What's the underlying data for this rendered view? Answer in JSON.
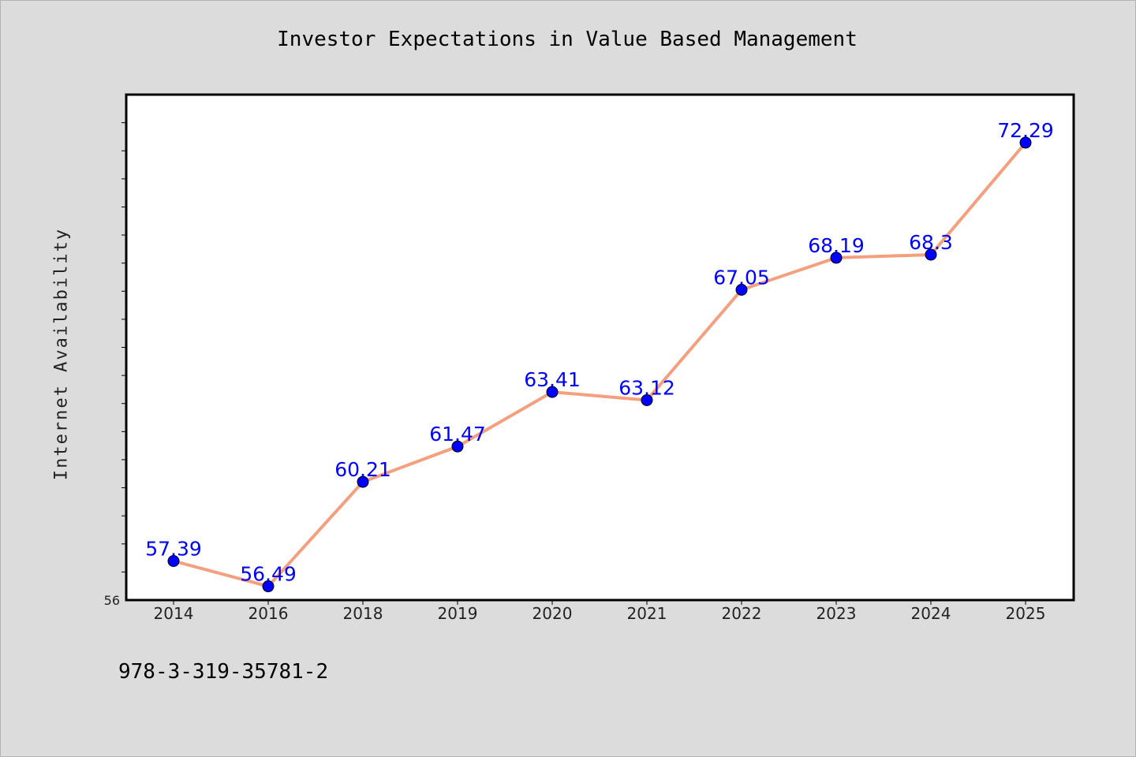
{
  "figure": {
    "background": "#dcdcdc",
    "footnote": "978-3-319-35781-2"
  },
  "chart_data": {
    "type": "line",
    "title": "Investor Expectations in Value Based Management",
    "xlabel": "",
    "ylabel": "Internet Availability",
    "categories": [
      "2014",
      "2016",
      "2018",
      "2019",
      "2020",
      "2021",
      "2022",
      "2023",
      "2024",
      "2025"
    ],
    "series": [
      {
        "values": [
          57.39,
          56.49,
          60.21,
          61.47,
          63.41,
          63.12,
          67.05,
          68.19,
          68.3,
          72.29
        ],
        "data_labels": [
          "57.39",
          "56.49",
          "60.21",
          "61.47",
          "63.41",
          "63.12",
          "67.05",
          "68.19",
          "68.3",
          "72.29"
        ],
        "line_color": "#f4a07f",
        "marker_color": "#0000ff",
        "label_color": "#0000ff"
      }
    ],
    "y_tick_labels": [
      "56"
    ],
    "ylim": [
      56,
      74
    ],
    "grid": false,
    "legend": "none",
    "plot_background": "#ffffff"
  }
}
